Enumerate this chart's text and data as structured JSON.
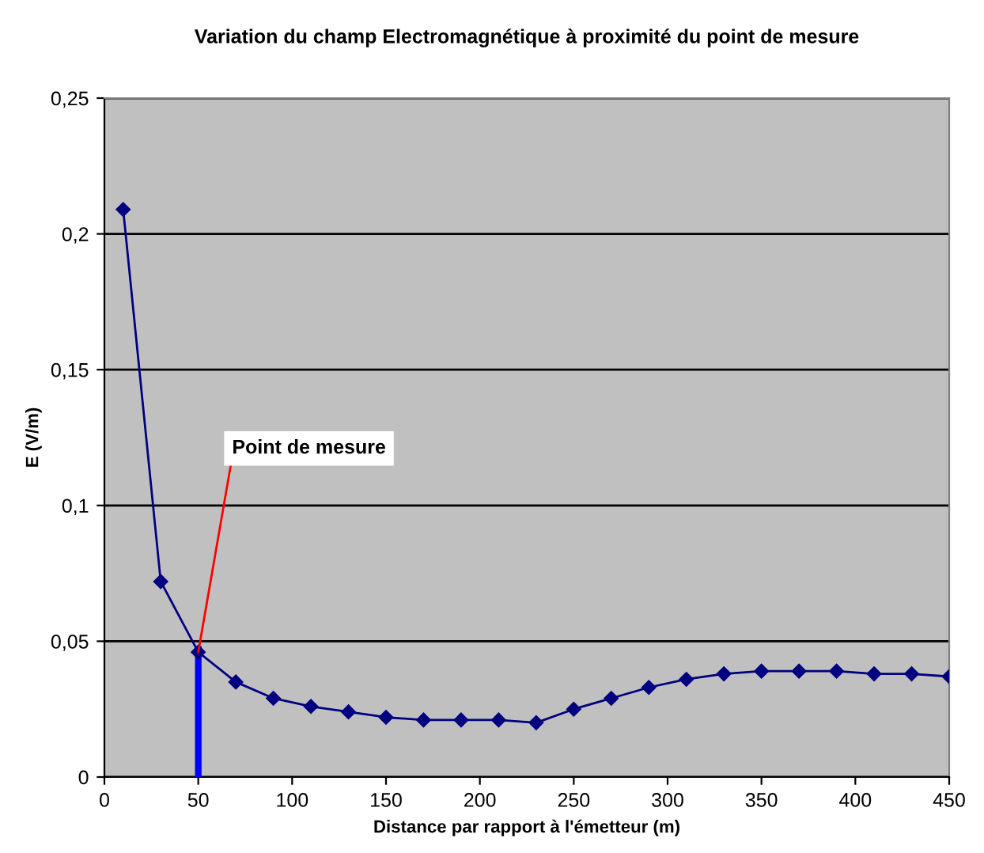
{
  "chart_data": {
    "type": "line",
    "title": "Variation du champ Electromagnétique à proximité du point de mesure",
    "xlabel": "Distance par rapport à l'émetteur (m)",
    "ylabel": "E (V/m)",
    "x": [
      10,
      30,
      50,
      70,
      90,
      110,
      130,
      150,
      170,
      190,
      210,
      230,
      250,
      270,
      290,
      310,
      330,
      350,
      370,
      390,
      410,
      430,
      450
    ],
    "series": [
      {
        "color": "#000080",
        "marker": "diamond",
        "values": [
          0.209,
          0.072,
          0.046,
          0.035,
          0.029,
          0.026,
          0.024,
          0.022,
          0.021,
          0.021,
          0.021,
          0.02,
          0.025,
          0.029,
          0.033,
          0.036,
          0.038,
          0.039,
          0.039,
          0.039,
          0.038,
          0.038,
          0.037
        ]
      },
      {
        "color": "#0000ff",
        "marker": "none",
        "x": [
          50,
          50
        ],
        "values": [
          0,
          0.047
        ]
      }
    ],
    "annotations": [
      {
        "text": "Point de mesure",
        "x": 50,
        "y": 0.046
      }
    ],
    "xlim": [
      0,
      450
    ],
    "xticks": [
      0,
      50,
      100,
      150,
      200,
      250,
      300,
      350,
      400,
      450
    ],
    "ylim": [
      0,
      0.25
    ],
    "yticks": [
      {
        "value": 0,
        "label": "0"
      },
      {
        "value": 0.05,
        "label": "0,05"
      },
      {
        "value": 0.1,
        "label": "0,1"
      },
      {
        "value": 0.15,
        "label": "0,15"
      },
      {
        "value": 0.2,
        "label": "0,2"
      },
      {
        "value": 0.25,
        "label": "0,25"
      }
    ],
    "grid": "y",
    "legend": false
  }
}
